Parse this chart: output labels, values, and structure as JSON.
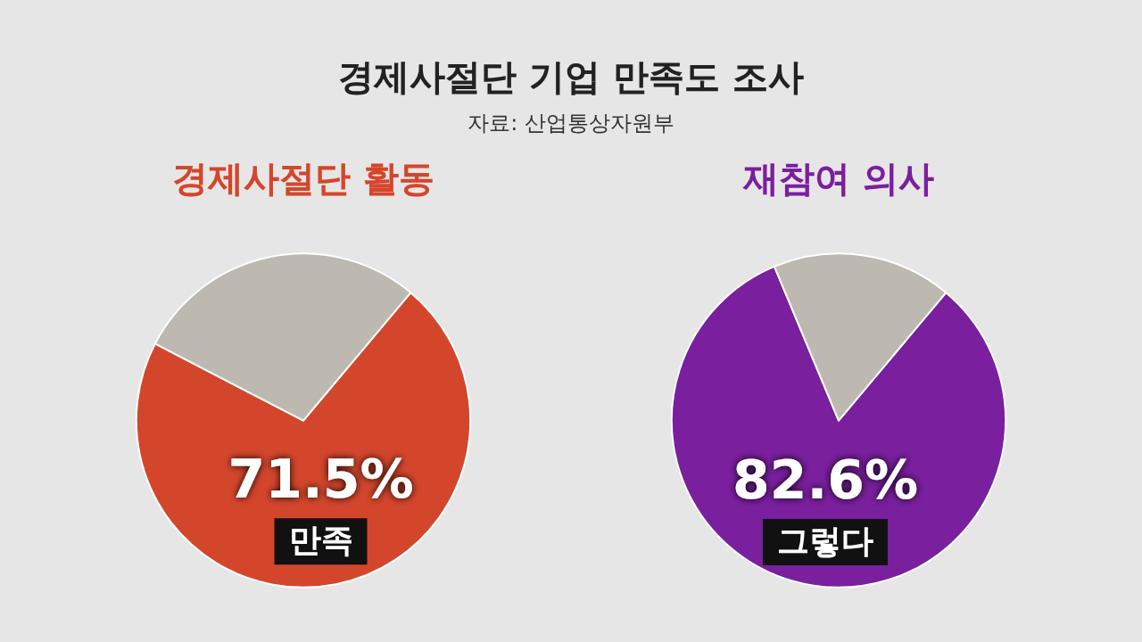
{
  "chart_data": [
    {
      "type": "other",
      "title": "경제사절단 기업 만족도 조사",
      "subtitle": "자료: 산업통상자원부"
    },
    {
      "type": "pie",
      "title": "경제사절단 활동",
      "categories": [
        "만족",
        null
      ],
      "values": [
        71.5,
        28.5
      ],
      "colors": [
        "#d4462c",
        "#bdb8b0"
      ],
      "value_labels": [
        "71.5%",
        null
      ],
      "legend": false
    },
    {
      "type": "pie",
      "title": "재참여 의사",
      "categories": [
        "그렇다",
        null
      ],
      "values": [
        82.6,
        17.4
      ],
      "colors": [
        "#7a1f9e",
        "#bdb8b0"
      ],
      "value_labels": [
        "82.6%",
        null
      ],
      "legend": false
    }
  ]
}
